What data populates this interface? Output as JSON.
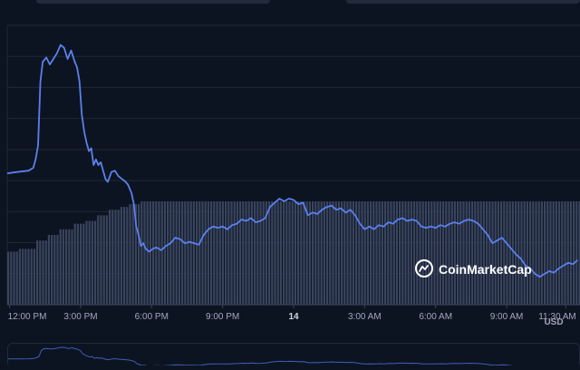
{
  "chart_data": {
    "type": "line",
    "title": "",
    "xlabel": "",
    "ylabel": "",
    "currency": "USD",
    "x_ticks": [
      {
        "label": "12:00 PM",
        "t": 0
      },
      {
        "label": "3:00 PM",
        "t": 3
      },
      {
        "label": "6:00 PM",
        "t": 6
      },
      {
        "label": "9:00 PM",
        "t": 9
      },
      {
        "label": "14",
        "t": 12,
        "bold": true
      },
      {
        "label": "3:00 AM",
        "t": 15
      },
      {
        "label": "6:00 AM",
        "t": 18
      },
      {
        "label": "9:00 AM",
        "t": 21
      },
      {
        "label": "11:30 AM",
        "t": 23.5
      }
    ],
    "x_range_hours": [
      -0.1,
      24.1
    ],
    "y_range": [
      0,
      100
    ],
    "grid": true,
    "series": [
      {
        "color": "#5b80ee",
        "points": [
          [
            -0.1,
            47
          ],
          [
            0.3,
            47.5
          ],
          [
            0.8,
            48
          ],
          [
            1.0,
            49
          ],
          [
            1.1,
            52
          ],
          [
            1.2,
            57
          ],
          [
            1.3,
            80
          ],
          [
            1.4,
            87
          ],
          [
            1.55,
            88.5
          ],
          [
            1.7,
            86
          ],
          [
            1.85,
            88
          ],
          [
            2.0,
            90
          ],
          [
            2.15,
            93
          ],
          [
            2.3,
            92
          ],
          [
            2.45,
            88
          ],
          [
            2.6,
            91
          ],
          [
            2.75,
            87
          ],
          [
            2.85,
            85
          ],
          [
            2.95,
            80
          ],
          [
            3.05,
            68
          ],
          [
            3.15,
            62
          ],
          [
            3.25,
            58
          ],
          [
            3.35,
            55
          ],
          [
            3.45,
            56
          ],
          [
            3.55,
            50
          ],
          [
            3.65,
            52
          ],
          [
            3.75,
            50
          ],
          [
            3.85,
            51
          ],
          [
            3.95,
            48
          ],
          [
            4.05,
            45
          ],
          [
            4.15,
            44
          ],
          [
            4.3,
            47.5
          ],
          [
            4.45,
            48
          ],
          [
            4.6,
            46
          ],
          [
            4.75,
            45
          ],
          [
            4.9,
            44
          ],
          [
            5.0,
            43
          ],
          [
            5.15,
            40
          ],
          [
            5.25,
            36
          ],
          [
            5.35,
            28
          ],
          [
            5.45,
            25
          ],
          [
            5.55,
            21
          ],
          [
            5.65,
            22
          ],
          [
            5.75,
            20
          ],
          [
            5.9,
            19
          ],
          [
            6.05,
            20
          ],
          [
            6.2,
            20.5
          ],
          [
            6.4,
            19.5
          ],
          [
            6.6,
            21
          ],
          [
            6.8,
            22
          ],
          [
            7.0,
            24
          ],
          [
            7.2,
            23.5
          ],
          [
            7.4,
            22
          ],
          [
            7.6,
            22.5
          ],
          [
            7.8,
            22
          ],
          [
            8.0,
            21.5
          ],
          [
            8.2,
            25
          ],
          [
            8.4,
            27
          ],
          [
            8.6,
            28
          ],
          [
            8.8,
            27.5
          ],
          [
            9.0,
            28
          ],
          [
            9.2,
            27
          ],
          [
            9.4,
            28.5
          ],
          [
            9.6,
            29
          ],
          [
            9.8,
            30.5
          ],
          [
            10.0,
            30
          ],
          [
            10.2,
            31
          ],
          [
            10.4,
            29.5
          ],
          [
            10.6,
            30
          ],
          [
            10.8,
            31
          ],
          [
            11.0,
            35
          ],
          [
            11.2,
            36.5
          ],
          [
            11.4,
            38
          ],
          [
            11.6,
            37
          ],
          [
            11.8,
            38
          ],
          [
            12.0,
            37.5
          ],
          [
            12.2,
            36
          ],
          [
            12.4,
            36.5
          ],
          [
            12.6,
            32
          ],
          [
            12.8,
            33
          ],
          [
            13.0,
            32.5
          ],
          [
            13.2,
            34
          ],
          [
            13.4,
            35
          ],
          [
            13.6,
            35.5
          ],
          [
            13.8,
            34
          ],
          [
            14.0,
            34.5
          ],
          [
            14.2,
            33
          ],
          [
            14.4,
            34
          ],
          [
            14.6,
            32
          ],
          [
            14.8,
            29
          ],
          [
            15.0,
            27
          ],
          [
            15.2,
            28
          ],
          [
            15.4,
            27
          ],
          [
            15.6,
            28.5
          ],
          [
            15.8,
            28
          ],
          [
            16.0,
            29.5
          ],
          [
            16.2,
            29
          ],
          [
            16.4,
            30.5
          ],
          [
            16.6,
            31
          ],
          [
            16.8,
            30
          ],
          [
            17.0,
            30.5
          ],
          [
            17.2,
            30
          ],
          [
            17.4,
            28
          ],
          [
            17.6,
            27.5
          ],
          [
            17.8,
            28
          ],
          [
            18.0,
            27.5
          ],
          [
            18.2,
            28.5
          ],
          [
            18.4,
            28
          ],
          [
            18.6,
            29
          ],
          [
            18.8,
            29.5
          ],
          [
            19.0,
            29
          ],
          [
            19.2,
            30
          ],
          [
            19.4,
            30.5
          ],
          [
            19.6,
            30
          ],
          [
            19.8,
            29
          ],
          [
            20.0,
            27
          ],
          [
            20.2,
            25
          ],
          [
            20.4,
            22
          ],
          [
            20.6,
            23
          ],
          [
            20.8,
            24
          ],
          [
            21.0,
            22
          ],
          [
            21.2,
            20
          ],
          [
            21.4,
            18
          ],
          [
            21.6,
            16.5
          ],
          [
            21.8,
            14
          ],
          [
            22.0,
            13
          ],
          [
            22.2,
            11
          ],
          [
            22.4,
            10
          ],
          [
            22.6,
            11
          ],
          [
            22.8,
            12
          ],
          [
            23.0,
            11.5
          ],
          [
            23.2,
            13
          ],
          [
            23.4,
            14
          ],
          [
            23.6,
            15
          ],
          [
            23.8,
            14.5
          ],
          [
            24.0,
            16
          ]
        ]
      }
    ],
    "volume": {
      "color": "#39445e",
      "steps": [
        [
          -0.1,
          19
        ],
        [
          0.3,
          20
        ],
        [
          1.1,
          23
        ],
        [
          1.6,
          25
        ],
        [
          2.1,
          27
        ],
        [
          2.6,
          29
        ],
        [
          3.1,
          30
        ],
        [
          3.6,
          32
        ],
        [
          4.1,
          34
        ],
        [
          4.6,
          35
        ],
        [
          5.0,
          36
        ],
        [
          5.5,
          37
        ],
        [
          24.1,
          37
        ]
      ]
    },
    "watermark": {
      "text": "CoinMarketCap",
      "icon": "coinmarketcap-logo-icon"
    }
  }
}
